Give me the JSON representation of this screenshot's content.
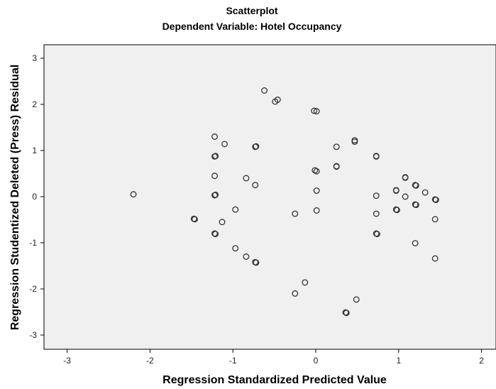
{
  "chart_data": {
    "type": "scatter",
    "title": "Scatterplot",
    "subtitle": "Dependent Variable: Hotel Occupancy",
    "xlabel": "Regression Standardized Predicted Value",
    "ylabel": "Regression Studentized Deleted (Press) Residual",
    "xlim": [
      -3.5,
      2.0
    ],
    "ylim": [
      -3.3,
      3.2
    ],
    "xticks": [
      -3,
      -2,
      -1,
      0,
      1,
      2
    ],
    "yticks": [
      -3,
      -2,
      -1,
      0,
      1,
      2,
      3
    ],
    "grid": false,
    "legend": "none",
    "points": [
      {
        "x": -2.2,
        "y": 0.05
      },
      {
        "x": -1.47,
        "y": -0.48
      },
      {
        "x": -1.46,
        "y": -0.49
      },
      {
        "x": -1.22,
        "y": 1.3
      },
      {
        "x": -1.22,
        "y": 0.87
      },
      {
        "x": -1.21,
        "y": 0.88
      },
      {
        "x": -1.22,
        "y": 0.45
      },
      {
        "x": -1.22,
        "y": 0.03
      },
      {
        "x": -1.21,
        "y": 0.04
      },
      {
        "x": -1.22,
        "y": -0.8
      },
      {
        "x": -1.21,
        "y": -0.81
      },
      {
        "x": -1.1,
        "y": 1.14
      },
      {
        "x": -1.13,
        "y": -0.55
      },
      {
        "x": -0.97,
        "y": -0.28
      },
      {
        "x": -0.97,
        "y": -1.12
      },
      {
        "x": -0.84,
        "y": 0.4
      },
      {
        "x": -0.84,
        "y": -1.3
      },
      {
        "x": -0.73,
        "y": 1.08
      },
      {
        "x": -0.72,
        "y": 1.09
      },
      {
        "x": -0.73,
        "y": 0.25
      },
      {
        "x": -0.73,
        "y": -1.42
      },
      {
        "x": -0.72,
        "y": -1.43
      },
      {
        "x": -0.62,
        "y": 2.3
      },
      {
        "x": -0.49,
        "y": 2.06
      },
      {
        "x": -0.46,
        "y": 2.1
      },
      {
        "x": -0.25,
        "y": -0.37
      },
      {
        "x": -0.25,
        "y": -2.1
      },
      {
        "x": -0.13,
        "y": -1.86
      },
      {
        "x": -0.02,
        "y": 1.86
      },
      {
        "x": 0.01,
        "y": 1.85
      },
      {
        "x": -0.01,
        "y": 0.57
      },
      {
        "x": 0.01,
        "y": 0.55
      },
      {
        "x": 0.01,
        "y": 0.13
      },
      {
        "x": 0.01,
        "y": -0.3
      },
      {
        "x": 0.25,
        "y": 1.08
      },
      {
        "x": 0.25,
        "y": 0.65
      },
      {
        "x": 0.25,
        "y": 0.66
      },
      {
        "x": 0.36,
        "y": -2.51
      },
      {
        "x": 0.37,
        "y": -2.52
      },
      {
        "x": 0.47,
        "y": 1.22
      },
      {
        "x": 0.47,
        "y": 1.19
      },
      {
        "x": 0.49,
        "y": -2.23
      },
      {
        "x": 0.73,
        "y": 0.87
      },
      {
        "x": 0.73,
        "y": 0.88
      },
      {
        "x": 0.73,
        "y": 0.02
      },
      {
        "x": 0.73,
        "y": -0.37
      },
      {
        "x": 0.73,
        "y": -0.8
      },
      {
        "x": 0.74,
        "y": -0.81
      },
      {
        "x": 0.97,
        "y": 0.13
      },
      {
        "x": 0.97,
        "y": 0.14
      },
      {
        "x": 0.97,
        "y": -0.28
      },
      {
        "x": 0.98,
        "y": -0.29
      },
      {
        "x": 1.08,
        "y": 0.42
      },
      {
        "x": 1.08,
        "y": 0.41
      },
      {
        "x": 1.08,
        "y": 0.0
      },
      {
        "x": 1.2,
        "y": 0.25
      },
      {
        "x": 1.21,
        "y": 0.24
      },
      {
        "x": 1.2,
        "y": -0.17
      },
      {
        "x": 1.21,
        "y": -0.18
      },
      {
        "x": 1.2,
        "y": -1.01
      },
      {
        "x": 1.32,
        "y": 0.09
      },
      {
        "x": 1.44,
        "y": -0.06
      },
      {
        "x": 1.45,
        "y": -0.07
      },
      {
        "x": 1.44,
        "y": -0.49
      },
      {
        "x": 1.44,
        "y": -1.34
      }
    ]
  }
}
